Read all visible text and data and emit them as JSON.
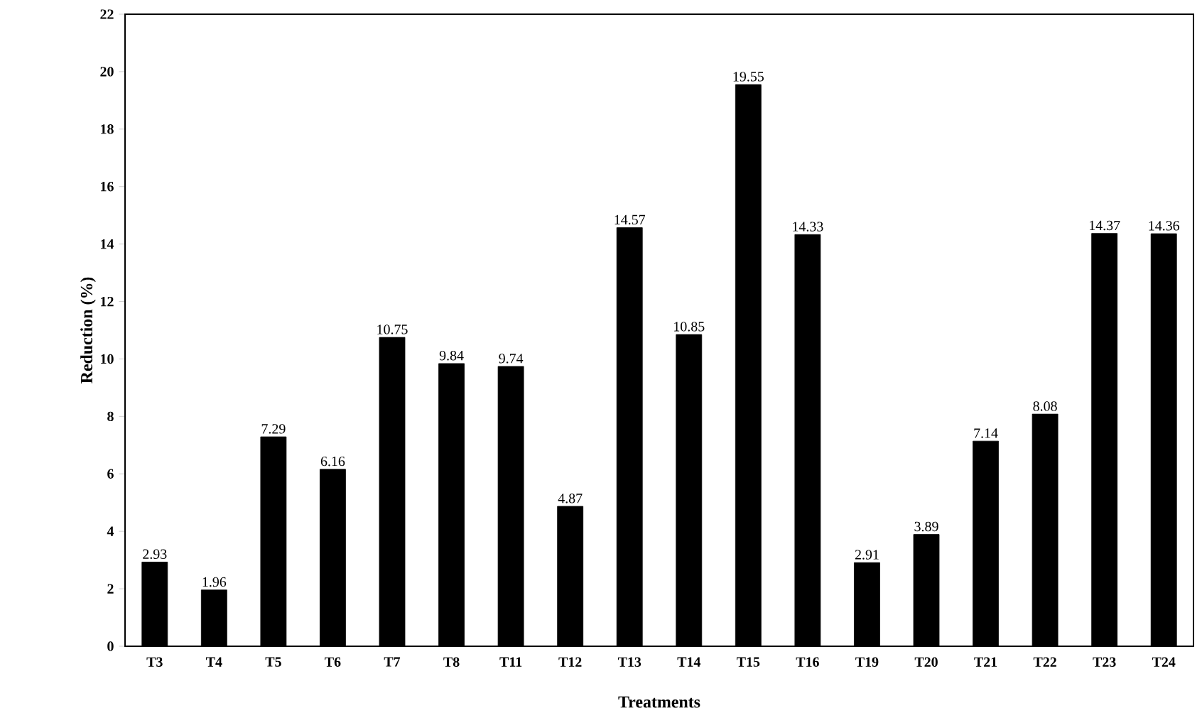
{
  "chart_data": {
    "type": "bar",
    "xlabel": "Treatments",
    "ylabel": "Reduction (%)",
    "categories": [
      "T3",
      "T4",
      "T5",
      "T6",
      "T7",
      "T8",
      "T11",
      "T12",
      "T13",
      "T14",
      "T15",
      "T16",
      "T19",
      "T20",
      "T21",
      "T22",
      "T23",
      "T24"
    ],
    "values": [
      2.93,
      1.96,
      7.29,
      6.16,
      10.75,
      9.84,
      9.74,
      4.87,
      14.57,
      10.85,
      19.55,
      14.33,
      2.91,
      3.89,
      7.14,
      8.08,
      14.37,
      14.36
    ],
    "color": "#000000",
    "ylim": [
      0,
      22
    ],
    "yticks": [
      0,
      2,
      4,
      6,
      8,
      10,
      12,
      14,
      16,
      18,
      20,
      22
    ],
    "data_labels": true
  }
}
